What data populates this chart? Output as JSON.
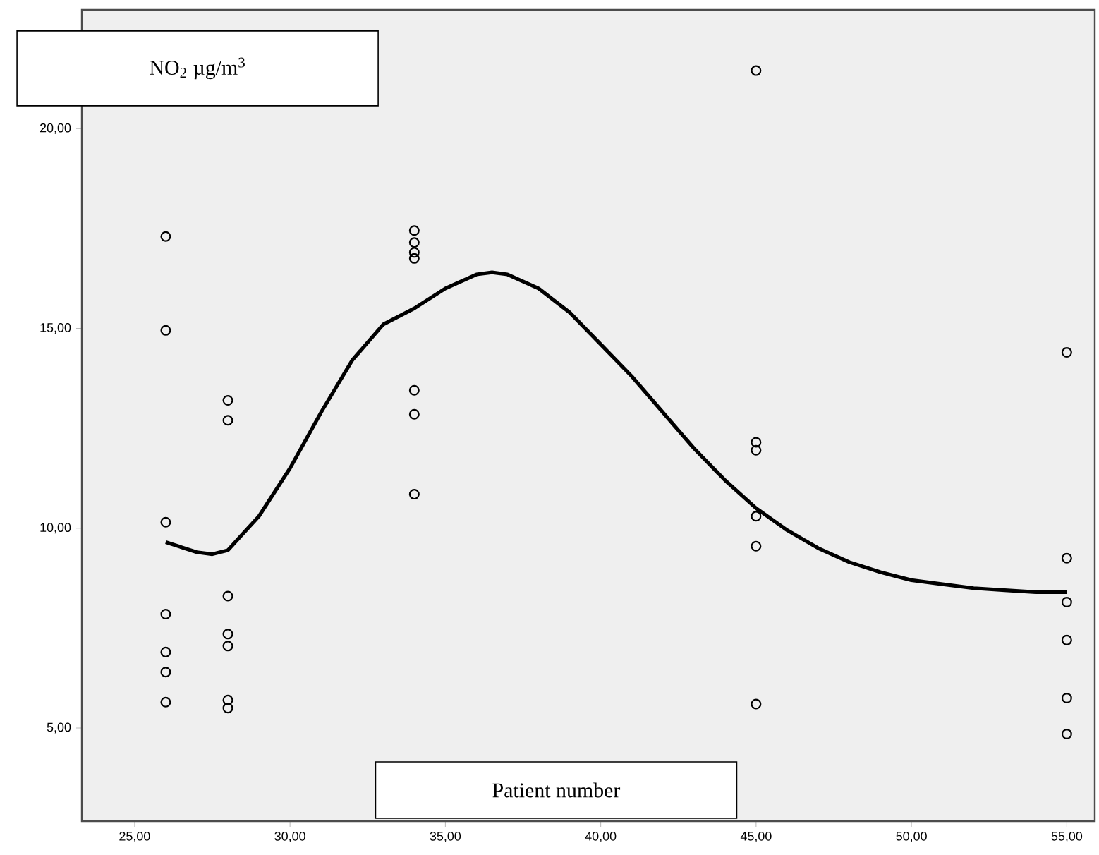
{
  "chart_data": {
    "type": "scatter",
    "xlabel": "Patient number",
    "ylabel": "NO$_{2}$ µg/m$^{3}$",
    "xlim": [
      23.3,
      55.9
    ],
    "ylim": [
      2.67,
      22.97
    ],
    "xticks": [
      {
        "value": 25,
        "label": "25,00"
      },
      {
        "value": 30,
        "label": "30,00"
      },
      {
        "value": 35,
        "label": "35,00"
      },
      {
        "value": 40,
        "label": "40,00"
      },
      {
        "value": 45,
        "label": "45,00"
      },
      {
        "value": 50,
        "label": "50,00"
      },
      {
        "value": 55,
        "label": "55,00"
      }
    ],
    "yticks": [
      {
        "value": 5,
        "label": "5,00"
      },
      {
        "value": 10,
        "label": "10,00"
      },
      {
        "value": 15,
        "label": "15,00"
      },
      {
        "value": 20,
        "label": "20,00"
      }
    ],
    "grid": false,
    "marker": "circle",
    "series": [
      {
        "color": "#000000",
        "x": [
          26,
          26,
          26,
          26,
          26,
          26,
          26,
          28,
          28,
          28,
          28,
          28,
          28,
          28,
          34,
          34,
          34,
          34,
          34,
          34,
          34,
          45,
          45,
          45,
          45,
          45,
          45,
          55,
          55,
          55,
          55,
          55,
          55
        ],
        "values": [
          17.3,
          14.95,
          10.15,
          7.85,
          6.9,
          6.4,
          5.65,
          13.2,
          12.7,
          8.3,
          7.35,
          7.05,
          5.7,
          5.5,
          17.45,
          17.15,
          16.9,
          16.75,
          13.45,
          12.85,
          10.85,
          21.45,
          12.15,
          11.95,
          10.3,
          9.55,
          5.6,
          14.4,
          9.25,
          8.15,
          7.2,
          5.75,
          4.85
        ]
      },
      {
        "type": "line",
        "marker": "none",
        "color": "#000000",
        "x": [
          26,
          27,
          27.5,
          28,
          29,
          30,
          31,
          32,
          33,
          34,
          35,
          36,
          36.5,
          37,
          38,
          39,
          40,
          41,
          42,
          43,
          44,
          45,
          46,
          47,
          48,
          49,
          50,
          51,
          52,
          53,
          54,
          55
        ],
        "values": [
          9.65,
          9.4,
          9.35,
          9.45,
          10.3,
          11.5,
          12.9,
          14.2,
          15.1,
          15.5,
          16.0,
          16.35,
          16.4,
          16.35,
          16.0,
          15.4,
          14.6,
          13.8,
          12.9,
          12.0,
          11.2,
          10.5,
          9.95,
          9.5,
          9.15,
          8.9,
          8.7,
          8.6,
          8.5,
          8.45,
          8.4,
          8.4
        ]
      }
    ]
  }
}
